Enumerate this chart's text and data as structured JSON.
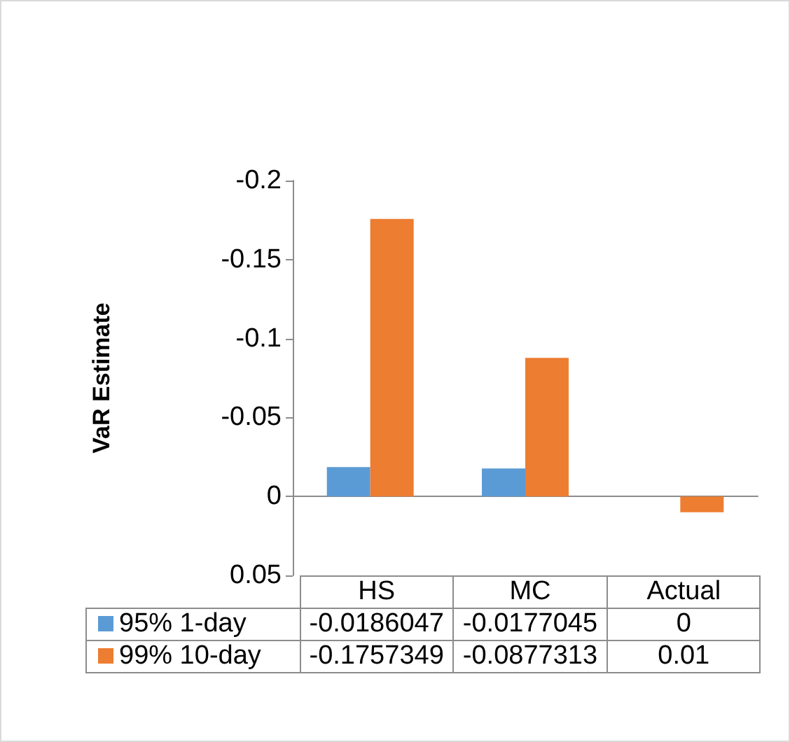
{
  "chart_data": {
    "type": "bar",
    "ylabel": "VaR Estimate",
    "categories": [
      "HS",
      "MC",
      "Actual"
    ],
    "series": [
      {
        "name": "95% 1-day",
        "color": "#5b9bd5",
        "values": [
          -0.0186047,
          -0.0177045,
          0
        ]
      },
      {
        "name": "99% 10-day",
        "color": "#ed7d31",
        "values": [
          -0.1757349,
          -0.0877313,
          0.01
        ]
      }
    ],
    "ylim": [
      0.05,
      -0.2
    ],
    "yticks": [
      -0.2,
      -0.15,
      -0.1,
      -0.05,
      0,
      0.05
    ],
    "legend": "bottom",
    "data_labels": true
  }
}
